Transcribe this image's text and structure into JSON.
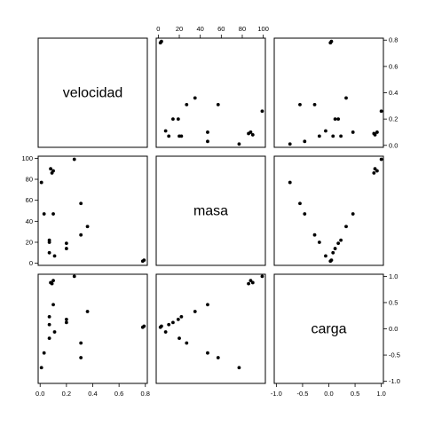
{
  "chart_data": {
    "type": "scatter",
    "variables": [
      {
        "name": "velocidad",
        "ticks": [
          0.0,
          0.2,
          0.4,
          0.6,
          0.8
        ],
        "tick_labels": [
          "0.0",
          "0.2",
          "0.4",
          "0.6",
          "0.8"
        ],
        "range": [
          -0.015,
          0.815
        ]
      },
      {
        "name": "masa",
        "ticks": [
          0,
          20,
          40,
          60,
          80,
          100
        ],
        "tick_labels": [
          "0",
          "20",
          "40",
          "60",
          "80",
          "100"
        ],
        "range": [
          -2,
          102
        ]
      },
      {
        "name": "carga",
        "ticks": [
          -1.0,
          -0.5,
          0.0,
          0.5,
          1.0
        ],
        "tick_labels": [
          "-1.0",
          "-0.5",
          "0.0",
          "0.5",
          "1.0"
        ],
        "range": [
          -1.04,
          1.04
        ]
      }
    ],
    "points": [
      {
        "velocidad": 0.78,
        "masa": 2,
        "carga": 0.03
      },
      {
        "velocidad": 0.79,
        "masa": 3,
        "carga": 0.05
      },
      {
        "velocidad": 0.26,
        "masa": 99,
        "carga": 1.0
      },
      {
        "velocidad": 0.1,
        "masa": 88,
        "carga": 0.92
      },
      {
        "velocidad": 0.08,
        "masa": 90,
        "carga": 0.88
      },
      {
        "velocidad": 0.09,
        "masa": 86,
        "carga": 0.86
      },
      {
        "velocidad": 0.01,
        "masa": 77,
        "carga": -0.74
      },
      {
        "velocidad": 0.31,
        "masa": 57,
        "carga": -0.55
      },
      {
        "velocidad": 0.03,
        "masa": 47,
        "carga": -0.46
      },
      {
        "velocidad": 0.1,
        "masa": 47,
        "carga": 0.46
      },
      {
        "velocidad": 0.36,
        "masa": 35,
        "carga": 0.33
      },
      {
        "velocidad": 0.31,
        "masa": 27,
        "carga": -0.27
      },
      {
        "velocidad": 0.07,
        "masa": 22,
        "carga": 0.23
      },
      {
        "velocidad": 0.07,
        "masa": 20,
        "carga": -0.18
      },
      {
        "velocidad": 0.2,
        "masa": 19,
        "carga": 0.18
      },
      {
        "velocidad": 0.2,
        "masa": 14,
        "carga": 0.12
      },
      {
        "velocidad": 0.07,
        "masa": 10,
        "carga": 0.08
      },
      {
        "velocidad": 0.11,
        "masa": 7,
        "carga": -0.06
      }
    ]
  }
}
